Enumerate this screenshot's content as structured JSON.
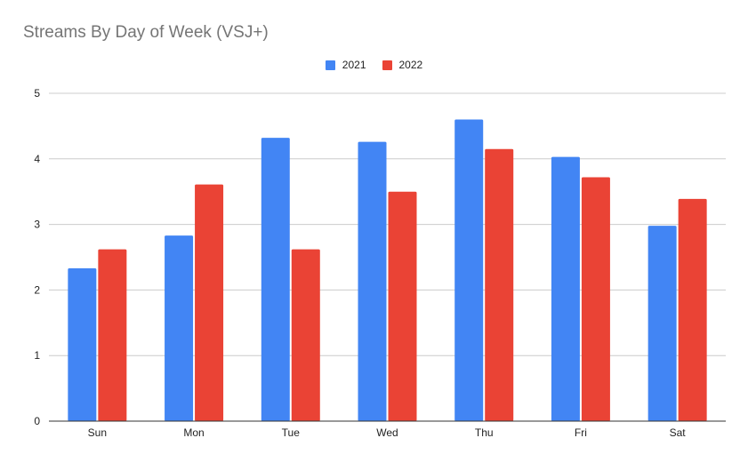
{
  "chart_data": {
    "type": "bar",
    "title": "Streams By Day of Week (VSJ+)",
    "xlabel": "",
    "ylabel": "",
    "categories": [
      "Sun",
      "Mon",
      "Tue",
      "Wed",
      "Thu",
      "Fri",
      "Sat"
    ],
    "series": [
      {
        "name": "2021",
        "color": "#4285f4",
        "values": [
          2.33,
          2.83,
          4.32,
          4.26,
          4.6,
          4.03,
          2.98
        ]
      },
      {
        "name": "2022",
        "color": "#ea4335",
        "values": [
          2.62,
          3.61,
          2.62,
          3.5,
          4.15,
          3.72,
          3.39
        ]
      }
    ],
    "ylim": [
      0,
      5
    ],
    "yticks": [
      "0",
      "1",
      "2",
      "3",
      "4",
      "5"
    ],
    "grid": true,
    "legend_position": "top-center"
  }
}
